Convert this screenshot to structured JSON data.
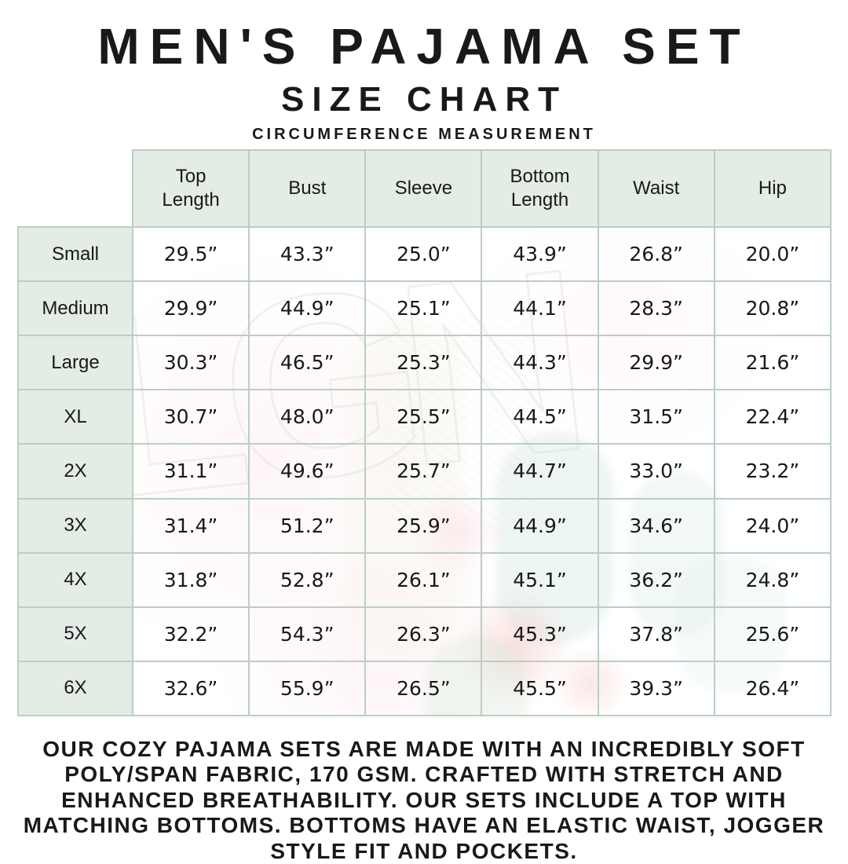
{
  "header": {
    "title": "MEN'S PAJAMA SET",
    "subtitle": "SIZE CHART",
    "measurement_note": "CIRCUMFERENCE MEASUREMENT"
  },
  "watermark": {
    "text": "LGN"
  },
  "footer": {
    "description": "OUR COZY PAJAMA SETS ARE MADE WITH AN INCREDIBLY SOFT POLY/SPAN FABRIC, 170 GSM. CRAFTED WITH STRETCH AND ENHANCED BREATHABILITY. OUR SETS INCLUDE A TOP WITH MATCHING BOTTOMS. BOTTOMS HAVE AN ELASTIC WAIST, JOGGER STYLE FIT AND POCKETS."
  },
  "colors": {
    "mint_cell": "#e4ece6",
    "grid_border": "#b9cfc2",
    "text_ink": "#191919"
  },
  "chart_data": {
    "type": "table",
    "title": "MEN'S PAJAMA SET SIZE CHART (CIRCUMFERENCE MEASUREMENT)",
    "columns": [
      "Top Length",
      "Bust",
      "Sleeve",
      "Bottom Length",
      "Waist",
      "Hip"
    ],
    "rows": [
      {
        "size": "Small",
        "values": [
          "29.5”",
          "43.3”",
          "25.0”",
          "43.9”",
          "26.8”",
          "20.0”"
        ]
      },
      {
        "size": "Medium",
        "values": [
          "29.9”",
          "44.9”",
          "25.1”",
          "44.1”",
          "28.3”",
          "20.8”"
        ]
      },
      {
        "size": "Large",
        "values": [
          "30.3”",
          "46.5”",
          "25.3”",
          "44.3”",
          "29.9”",
          "21.6”"
        ]
      },
      {
        "size": "XL",
        "values": [
          "30.7”",
          "48.0”",
          "25.5”",
          "44.5”",
          "31.5”",
          "22.4”"
        ]
      },
      {
        "size": "2X",
        "values": [
          "31.1”",
          "49.6”",
          "25.7”",
          "44.7”",
          "33.0”",
          "23.2”"
        ]
      },
      {
        "size": "3X",
        "values": [
          "31.4”",
          "51.2”",
          "25.9”",
          "44.9”",
          "34.6”",
          "24.0”"
        ]
      },
      {
        "size": "4X",
        "values": [
          "31.8”",
          "52.8”",
          "26.1”",
          "45.1”",
          "36.2”",
          "24.8”"
        ]
      },
      {
        "size": "5X",
        "values": [
          "32.2”",
          "54.3”",
          "26.3”",
          "45.3”",
          "37.8”",
          "25.6”"
        ]
      },
      {
        "size": "6X",
        "values": [
          "32.6”",
          "55.9”",
          "26.5”",
          "45.5”",
          "39.3”",
          "26.4”"
        ]
      }
    ]
  }
}
